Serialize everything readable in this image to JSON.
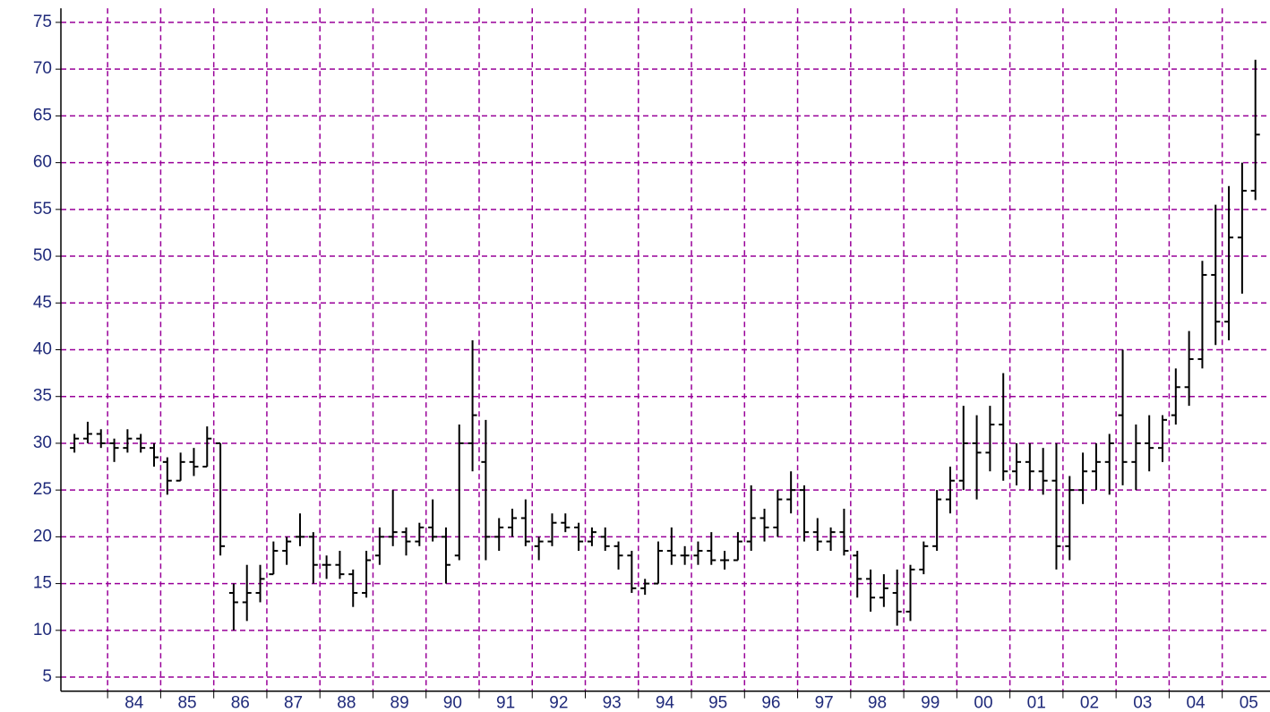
{
  "chart_data": {
    "type": "ohlc",
    "color": "#000000",
    "grid": true,
    "grid_color": "#990099",
    "xlim": [
      1983.12,
      2005.9
    ],
    "ylim": [
      3.5,
      76.5
    ],
    "yticks": [
      5,
      10,
      15,
      20,
      25,
      30,
      35,
      40,
      45,
      50,
      55,
      60,
      65,
      70,
      75
    ],
    "xgrid": [
      1984,
      1985,
      1986,
      1987,
      1988,
      1989,
      1990,
      1991,
      1992,
      1993,
      1994,
      1995,
      1996,
      1997,
      1998,
      1999,
      2000,
      2001,
      2002,
      2003,
      2004,
      2005
    ],
    "xticks": [
      {
        "value": 1984.5,
        "label": "84"
      },
      {
        "value": 1985.5,
        "label": "85"
      },
      {
        "value": 1986.5,
        "label": "86"
      },
      {
        "value": 1987.5,
        "label": "87"
      },
      {
        "value": 1988.5,
        "label": "88"
      },
      {
        "value": 1989.5,
        "label": "89"
      },
      {
        "value": 1990.5,
        "label": "90"
      },
      {
        "value": 1991.5,
        "label": "91"
      },
      {
        "value": 1992.5,
        "label": "92"
      },
      {
        "value": 1993.5,
        "label": "93"
      },
      {
        "value": 1994.5,
        "label": "94"
      },
      {
        "value": 1995.5,
        "label": "95"
      },
      {
        "value": 1996.5,
        "label": "96"
      },
      {
        "value": 1997.5,
        "label": "97"
      },
      {
        "value": 1998.5,
        "label": "98"
      },
      {
        "value": 1999.5,
        "label": "99"
      },
      {
        "value": 2000.5,
        "label": "00"
      },
      {
        "value": 2001.5,
        "label": "01"
      },
      {
        "value": 2002.5,
        "label": "02"
      },
      {
        "value": 2003.5,
        "label": "03"
      },
      {
        "value": 2004.5,
        "label": "04"
      },
      {
        "value": 2005.5,
        "label": "05"
      }
    ],
    "x": [
      1983.375,
      1983.625,
      1983.875,
      1984.125,
      1984.375,
      1984.625,
      1984.875,
      1985.125,
      1985.375,
      1985.625,
      1985.875,
      1986.125,
      1986.375,
      1986.625,
      1986.875,
      1987.125,
      1987.375,
      1987.625,
      1987.875,
      1988.125,
      1988.375,
      1988.625,
      1988.875,
      1989.125,
      1989.375,
      1989.625,
      1989.875,
      1990.125,
      1990.375,
      1990.625,
      1990.875,
      1991.125,
      1991.375,
      1991.625,
      1991.875,
      1992.125,
      1992.375,
      1992.625,
      1992.875,
      1993.125,
      1993.375,
      1993.625,
      1993.875,
      1994.125,
      1994.375,
      1994.625,
      1994.875,
      1995.125,
      1995.375,
      1995.625,
      1995.875,
      1996.125,
      1996.375,
      1996.625,
      1996.875,
      1997.125,
      1997.375,
      1997.625,
      1997.875,
      1998.125,
      1998.375,
      1998.625,
      1998.875,
      1999.125,
      1999.375,
      1999.625,
      1999.875,
      2000.125,
      2000.375,
      2000.625,
      2000.875,
      2001.125,
      2001.375,
      2001.625,
      2001.875,
      2002.125,
      2002.375,
      2002.625,
      2002.875,
      2003.125,
      2003.375,
      2003.625,
      2003.875,
      2004.125,
      2004.375,
      2004.625,
      2004.875,
      2005.125,
      2005.375,
      2005.625
    ],
    "open": [
      29.5,
      30.5,
      31,
      30,
      29.5,
      30.5,
      29.5,
      28,
      26,
      28,
      27.5,
      30,
      14,
      13,
      14,
      16,
      18.5,
      20,
      20,
      17,
      17,
      16,
      14,
      18,
      20,
      20.5,
      19.5,
      21,
      20,
      18,
      30,
      28,
      20,
      21,
      22,
      19,
      19.5,
      21.5,
      21,
      19.5,
      20,
      19,
      18,
      14.5,
      15,
      18.5,
      18,
      18,
      18.5,
      17.5,
      17.5,
      19.5,
      22,
      21,
      24,
      25,
      20.5,
      19.5,
      20.5,
      18,
      15.5,
      13.5,
      14,
      12,
      16.5,
      19,
      24,
      26,
      30,
      29,
      32,
      27,
      28,
      27,
      26,
      19,
      25,
      27,
      28,
      33,
      28,
      30,
      29.5,
      33,
      36,
      39,
      48,
      43,
      52,
      57
    ],
    "high": [
      31,
      32.3,
      31.5,
      30.5,
      31.5,
      31,
      30,
      28.5,
      29,
      29.5,
      31.8,
      30,
      15,
      17,
      17,
      19.5,
      20,
      22.5,
      20.5,
      18,
      18.5,
      16.5,
      18.5,
      21,
      25,
      21,
      21.5,
      24,
      21,
      32,
      41,
      32.5,
      22,
      23,
      24,
      20,
      22.5,
      22.5,
      21.5,
      21,
      21,
      19.5,
      18.5,
      15.5,
      19.5,
      21,
      19,
      19.5,
      20.5,
      18.5,
      20.5,
      25.5,
      23,
      25,
      27,
      25.5,
      22,
      21,
      23,
      18.5,
      16.5,
      16,
      16.5,
      17,
      19.5,
      25,
      27.5,
      34,
      33,
      34,
      37.5,
      30,
      30,
      29.5,
      30,
      26.5,
      29,
      30,
      31,
      40,
      32,
      33,
      33,
      38,
      42,
      49.5,
      55.5,
      57.5,
      60,
      71
    ],
    "low": [
      29,
      30,
      29.5,
      28,
      29,
      29,
      27.5,
      24.5,
      26,
      26.5,
      27.5,
      18,
      10,
      11,
      13,
      16,
      17,
      19,
      15,
      15.5,
      15.5,
      12.5,
      13.5,
      17,
      19,
      18,
      19,
      19.5,
      15,
      17.5,
      27,
      17.5,
      18.5,
      20,
      19,
      17.5,
      19,
      20.5,
      18.5,
      19,
      18.5,
      16.5,
      14,
      13.8,
      15,
      17,
      17,
      17,
      17,
      16.5,
      17.5,
      18.5,
      19.5,
      20,
      22.5,
      19.5,
      18.5,
      18.5,
      18,
      13.5,
      12,
      12.5,
      10.5,
      11,
      16,
      18.5,
      22.5,
      25,
      24,
      27,
      26,
      25.5,
      25,
      24.5,
      16.5,
      17.5,
      23.5,
      25,
      24.5,
      25.5,
      25,
      27,
      28,
      32,
      34,
      38,
      40.5,
      41,
      46,
      56
    ],
    "close": [
      30.5,
      31,
      30,
      29.5,
      30.5,
      29.5,
      28.5,
      26,
      28,
      27.5,
      30.5,
      19,
      13,
      14,
      15.5,
      18.5,
      19.5,
      20,
      17,
      17,
      16,
      14,
      17.5,
      20,
      20.5,
      19.5,
      21,
      20,
      17,
      30,
      33,
      20,
      21,
      22,
      19.5,
      19.5,
      21.5,
      21,
      19.5,
      20.5,
      19,
      18,
      14.5,
      15,
      18.5,
      18,
      18,
      18.5,
      17.5,
      17.5,
      19.5,
      22,
      21,
      24,
      25,
      20.5,
      19.5,
      20.5,
      18.5,
      15.5,
      13.5,
      14.5,
      12,
      16.5,
      19,
      24,
      26,
      30,
      29,
      32,
      27,
      28,
      27,
      26,
      19,
      25,
      27,
      28,
      30,
      28,
      30,
      29.5,
      32.5,
      36,
      39,
      48,
      43,
      52,
      57,
      63
    ]
  }
}
